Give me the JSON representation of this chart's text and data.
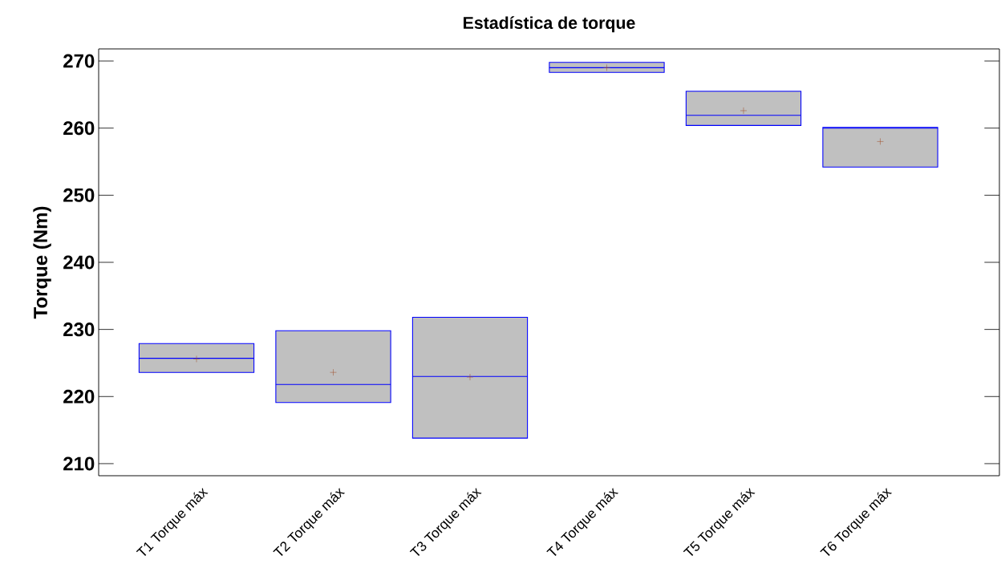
{
  "chart_data": {
    "type": "box",
    "title": "Estadística de torque",
    "ylabel": "Torque (Nm)",
    "categories": [
      "T1 Torque máx",
      "T2 Torque máx",
      "T3 Torque máx",
      "T4 Torque máx",
      "T5 Torque máx",
      "T6 Torque máx"
    ],
    "series": [
      {
        "color": "#c0c0c0",
        "boxes": [
          {
            "low": 223.6,
            "q1": 223.6,
            "median": 225.7,
            "q3": 227.9,
            "high": 227.9,
            "mean": 225.6
          },
          {
            "low": 219.1,
            "q1": 219.1,
            "median": 221.8,
            "q3": 229.8,
            "high": 229.8,
            "mean": 223.6
          },
          {
            "low": 213.8,
            "q1": 213.8,
            "median": 223.0,
            "q3": 231.8,
            "high": 231.8,
            "mean": 222.9
          },
          {
            "low": 268.3,
            "q1": 268.3,
            "median": 269.0,
            "q3": 269.8,
            "high": 269.8,
            "mean": 269.0
          },
          {
            "low": 260.4,
            "q1": 260.4,
            "median": 261.9,
            "q3": 265.5,
            "high": 265.5,
            "mean": 262.6
          },
          {
            "low": 254.2,
            "q1": 254.2,
            "median": 260.0,
            "q3": 260.1,
            "high": 260.1,
            "mean": 258.0
          }
        ]
      }
    ],
    "ylim": [
      208.2,
      271.8
    ],
    "yticks": [
      210,
      220,
      230,
      240,
      250,
      260,
      270
    ],
    "grid": false
  }
}
